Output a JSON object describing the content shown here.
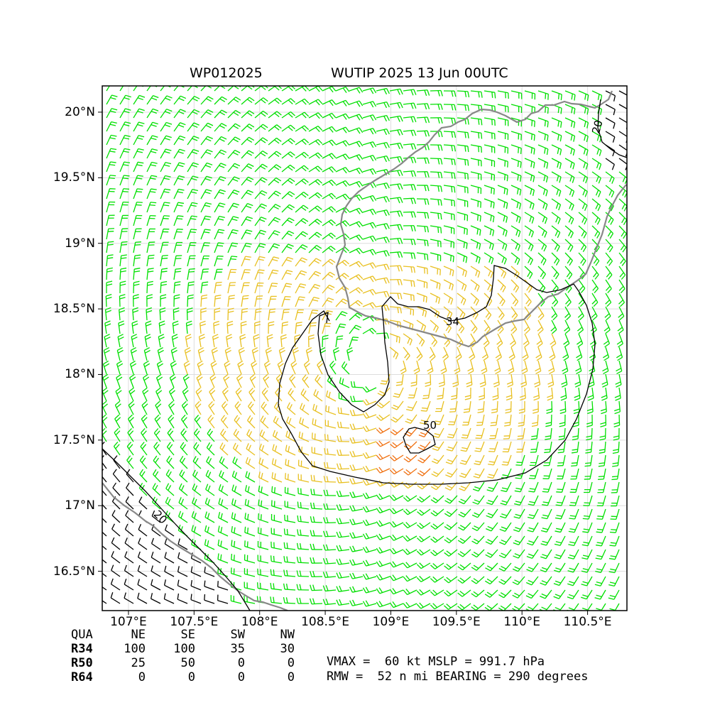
{
  "title": {
    "storm_id": "WP012025",
    "storm_time": "WUTIP 2025 13 Jun 00UTC"
  },
  "map": {
    "lon_range": [
      106.8,
      110.8
    ],
    "lat_range": [
      16.2,
      20.2
    ],
    "lon_ticks": [
      "107°E",
      "107.5°E",
      "108°E",
      "108.5°E",
      "109°E",
      "109.5°E",
      "110°E",
      "110.5°E"
    ],
    "lon_tick_values": [
      107.0,
      107.5,
      108.0,
      108.5,
      109.0,
      109.5,
      110.0,
      110.5
    ],
    "lat_ticks": [
      "20°N",
      "19.5°N",
      "19°N",
      "18.5°N",
      "18°N",
      "17.5°N",
      "17°N",
      "16.5°N"
    ],
    "lat_tick_values": [
      20.0,
      19.5,
      19.0,
      18.5,
      18.0,
      17.5,
      17.0,
      16.5
    ],
    "storm_center": {
      "lon": 108.85,
      "lat": 18.1
    },
    "colors": {
      "below_34kt": "#00e000",
      "34_to_50kt": "#e8c020",
      "above_50kt": "#f07010",
      "calm_black": "#000000",
      "coastline": "#888888",
      "gridline": "#dddddd"
    },
    "contour_labels": [
      "34",
      "50",
      "20",
      "20"
    ]
  },
  "wind_radii": {
    "header": [
      "QUA",
      "NE",
      "SE",
      "SW",
      "NW"
    ],
    "rows": [
      {
        "label": "R34",
        "values": [
          "100",
          "100",
          "35",
          "30"
        ]
      },
      {
        "label": "R50",
        "values": [
          "25",
          "50",
          "0",
          "0"
        ]
      },
      {
        "label": "R64",
        "values": [
          "0",
          "0",
          "0",
          "0"
        ]
      }
    ]
  },
  "storm_info": {
    "line1": "VMAX =  60 kt MSLP = 991.7 hPa",
    "line2": "RMW =  52 n mi BEARING = 290 degrees"
  }
}
